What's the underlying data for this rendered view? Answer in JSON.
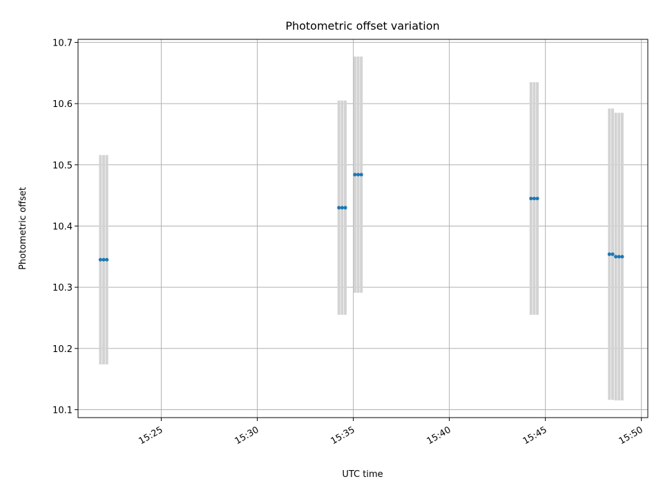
{
  "chart_data": {
    "type": "scatter",
    "title": "Photometric offset variation",
    "xlabel": "UTC time",
    "ylabel": "Photometric offset",
    "x_ticks": [
      "15:25",
      "15:30",
      "15:35",
      "15:40",
      "15:45",
      "15:50"
    ],
    "y_ticks": [
      "10.1",
      "10.2",
      "10.3",
      "10.4",
      "10.5",
      "10.6",
      "10.7"
    ],
    "xlim": [
      "15:20:40",
      "15:50:20"
    ],
    "ylim": [
      10.087,
      10.705
    ],
    "grid": true,
    "colors": {
      "points": "#1f77b4",
      "errorbars": "#d3d3d3",
      "grid": "#b0b0b0"
    },
    "points": [
      {
        "x": "15:21:50",
        "y": 10.345,
        "yerr": 0.171
      },
      {
        "x": "15:22:00",
        "y": 10.345,
        "yerr": 0.171
      },
      {
        "x": "15:22:10",
        "y": 10.345,
        "yerr": 0.171
      },
      {
        "x": "15:34:15",
        "y": 10.43,
        "yerr": 0.175
      },
      {
        "x": "15:34:25",
        "y": 10.43,
        "yerr": 0.175
      },
      {
        "x": "15:34:35",
        "y": 10.43,
        "yerr": 0.175
      },
      {
        "x": "15:35:05",
        "y": 10.484,
        "yerr": 0.193
      },
      {
        "x": "15:35:15",
        "y": 10.484,
        "yerr": 0.193
      },
      {
        "x": "15:35:25",
        "y": 10.484,
        "yerr": 0.193
      },
      {
        "x": "15:44:15",
        "y": 10.445,
        "yerr": 0.19
      },
      {
        "x": "15:44:25",
        "y": 10.445,
        "yerr": 0.19
      },
      {
        "x": "15:44:35",
        "y": 10.445,
        "yerr": 0.19
      },
      {
        "x": "15:48:20",
        "y": 10.354,
        "yerr": 0.238
      },
      {
        "x": "15:48:30",
        "y": 10.354,
        "yerr": 0.238
      },
      {
        "x": "15:48:40",
        "y": 10.35,
        "yerr": 0.235
      },
      {
        "x": "15:48:50",
        "y": 10.35,
        "yerr": 0.235
      },
      {
        "x": "15:49:00",
        "y": 10.35,
        "yerr": 0.235
      }
    ]
  }
}
